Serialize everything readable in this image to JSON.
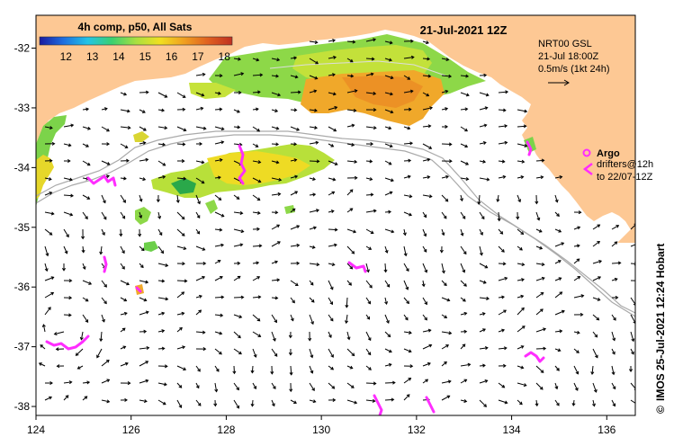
{
  "header": {
    "composite_label": "4h comp, p50, All Sats",
    "date_label": "21-Jul-2021 12Z"
  },
  "colorbar": {
    "ticks": [
      "12",
      "13",
      "14",
      "15",
      "16",
      "17",
      "18"
    ],
    "stops": [
      "#1a1aa0",
      "#1e6fe0",
      "#22c4e6",
      "#3ad070",
      "#a8e040",
      "#f0e020",
      "#f0a020",
      "#e06020",
      "#c03020"
    ]
  },
  "current_legend": {
    "line1": "NRT00 GSL",
    "line2": "21-Jul 18:00Z",
    "line3": "0.5m/s (1kt 24h)"
  },
  "argo_legend": {
    "argo_label": "Argo",
    "drifters_line1": "drifters@12h",
    "drifters_line2": "to 22/07-12Z"
  },
  "credit": "IMOS 25-Jul-2021 12:24 Hobart",
  "credit_symbol": "©",
  "axes": {
    "x_ticks": [
      "124",
      "126",
      "128",
      "130",
      "132",
      "134",
      "136"
    ],
    "y_ticks": [
      "-32",
      "-33",
      "-34",
      "-35",
      "-36",
      "-37",
      "-38"
    ]
  },
  "colors": {
    "land": "#fdc894",
    "sea": "#ffffff",
    "argo": "#ff2dff",
    "arrow": "#000000"
  }
}
